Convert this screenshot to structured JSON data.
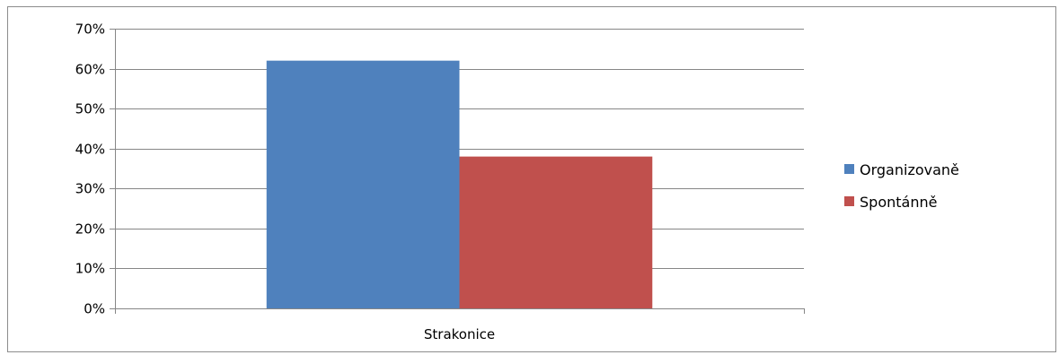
{
  "chart_data": {
    "type": "bar",
    "categories": [
      "Strakonice"
    ],
    "series": [
      {
        "name": "Organizovaně",
        "values": [
          0.62
        ],
        "color": "#4f81bd"
      },
      {
        "name": "Spontánně",
        "values": [
          0.38
        ],
        "color": "#c0504d"
      }
    ],
    "y_ticks": [
      "0%",
      "10%",
      "20%",
      "30%",
      "40%",
      "50%",
      "60%",
      "70%"
    ],
    "ylim": [
      0,
      0.7
    ],
    "grid": true,
    "legend_position": "right",
    "title": "",
    "xlabel": "",
    "ylabel": ""
  }
}
